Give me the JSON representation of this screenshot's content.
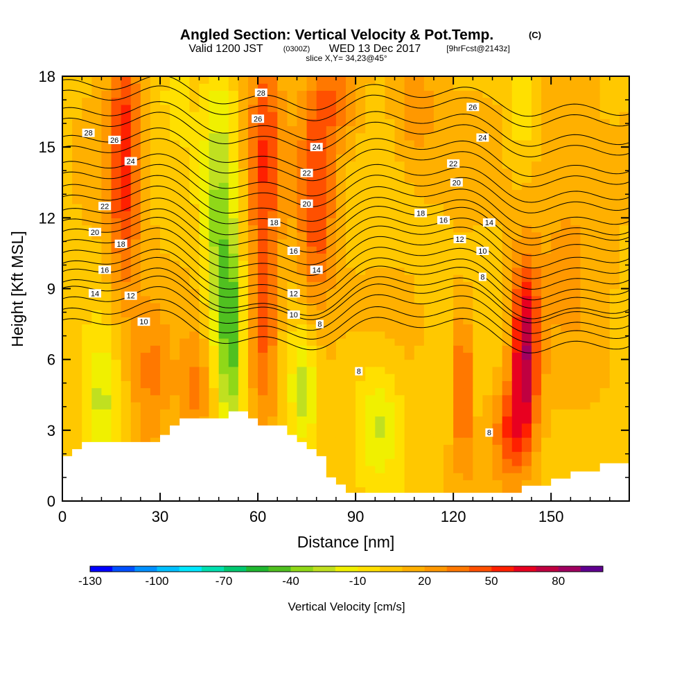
{
  "chart_data": {
    "type": "heatmap",
    "title": "Angled Section: Vertical Velocity & Pot.Temp.",
    "title_units": "(C)",
    "subtitle_line1_a": "Valid 1200 JST",
    "subtitle_line1_b": "(0300Z)",
    "subtitle_line1_c": "WED 13 Dec 2017",
    "subtitle_line1_d": "[9hrFcst@2143z]",
    "subtitle_line2": "slice X,Y= 34,23@45°",
    "xlabel": "Distance [nm]",
    "ylabel": "Height [Kft MSL]",
    "xlim": [
      0,
      174
    ],
    "ylim": [
      0,
      18
    ],
    "x_ticks": [
      "0",
      "30",
      "60",
      "90",
      "120",
      "150"
    ],
    "x_tick_values": [
      0,
      30,
      60,
      90,
      120,
      150
    ],
    "y_ticks": [
      "0",
      "3",
      "6",
      "9",
      "12",
      "15",
      "18"
    ],
    "y_tick_values": [
      0,
      3,
      6,
      9,
      12,
      15,
      18
    ],
    "colorbar": {
      "label": "Vertical Velocity [cm/s]",
      "min": -130,
      "max": 100,
      "step": 10,
      "tick_labels": [
        "-130",
        "-100",
        "-70",
        "-40",
        "-10",
        "20",
        "50",
        "80"
      ],
      "tick_values": [
        -130,
        -100,
        -70,
        -40,
        -10,
        20,
        50,
        80
      ],
      "colors": [
        "#0000ff",
        "#0050ff",
        "#0090ff",
        "#00c0ff",
        "#00e8ff",
        "#00e0b0",
        "#00c870",
        "#20b830",
        "#50c020",
        "#90d818",
        "#c0e020",
        "#f0f000",
        "#ffe000",
        "#ffc800",
        "#ffb000",
        "#ff9800",
        "#ff7800",
        "#ff5000",
        "#ff2000",
        "#e80020",
        "#c00040",
        "#a00060",
        "#600090"
      ]
    },
    "terrain_profile": {
      "x": [
        0,
        3,
        3,
        6,
        6,
        9,
        9,
        12,
        12,
        15,
        15,
        18,
        18,
        21,
        21,
        24,
        24,
        27,
        27,
        30,
        30,
        33,
        33,
        36,
        36,
        39,
        39,
        42,
        42,
        45,
        45,
        48,
        48,
        51,
        51,
        54,
        54,
        57,
        57,
        60,
        60,
        63,
        63,
        66,
        66,
        69,
        69,
        72,
        72,
        75,
        75,
        78,
        78,
        81,
        81,
        84,
        84,
        87,
        87,
        90,
        90,
        93,
        93,
        96,
        96,
        99,
        99,
        102,
        102,
        105,
        105,
        108,
        108,
        111,
        111,
        114,
        114,
        117,
        117,
        120,
        120,
        123,
        123,
        126,
        126,
        129,
        129,
        132,
        132,
        135,
        135,
        138,
        138,
        141,
        141,
        144,
        144,
        147,
        147,
        150,
        150,
        153,
        153,
        156,
        156,
        159,
        159,
        162,
        162,
        165,
        165,
        168,
        168,
        171,
        171,
        174
      ],
      "y": [
        1.9,
        1.9,
        2.2,
        2.2,
        2.5,
        2.5,
        2.5,
        2.5,
        2.5,
        2.5,
        2.5,
        2.5,
        2.5,
        2.5,
        2.5,
        2.5,
        2.5,
        2.5,
        2.5,
        2.5,
        2.8,
        2.8,
        3.2,
        3.2,
        3.5,
        3.5,
        3.5,
        3.5,
        3.5,
        3.5,
        3.5,
        3.5,
        3.5,
        3.5,
        3.8,
        3.8,
        3.8,
        3.8,
        3.5,
        3.5,
        3.2,
        3.2,
        3.2,
        3.2,
        3.2,
        3.2,
        2.8,
        2.8,
        2.5,
        2.5,
        2.2,
        2.2,
        1.9,
        1.9,
        1.0,
        1.0,
        0.7,
        0.7,
        0.35,
        0.35,
        0.35,
        0.35,
        0.35,
        0.35,
        0.35,
        0.35,
        0.35,
        0.35,
        0.35,
        0.35,
        0.35,
        0.35,
        0.35,
        0.35,
        0.35,
        0.35,
        0.35,
        0.35,
        0.35,
        0.35,
        0.35,
        0.35,
        0.35,
        0.35,
        0.35,
        0.35,
        0.35,
        0.35,
        0.35,
        0.35,
        0.35,
        0.35,
        0.35,
        0.35,
        0.65,
        0.65,
        0.65,
        0.65,
        0.65,
        0.65,
        0.95,
        0.95,
        0.95,
        0.95,
        1.25,
        1.25,
        1.25,
        1.25,
        1.25,
        1.25,
        1.6,
        1.6,
        1.6,
        1.6,
        1.6,
        1.6
      ]
    },
    "theta_contours": [
      {
        "label": "8",
        "base": 7.2,
        "amp": 0.6
      },
      {
        "label": "10",
        "base": 8.1,
        "amp": 0.7
      },
      {
        "label": "12",
        "base": 8.8,
        "amp": 0.8
      },
      {
        "label": "14",
        "base": 9.6,
        "amp": 0.8
      },
      {
        "label": "16",
        "base": 10.5,
        "amp": 0.8
      },
      {
        "label": "18",
        "base": 11.4,
        "amp": 0.7
      },
      {
        "label": "20",
        "base": 12.3,
        "amp": 0.7
      },
      {
        "label": "22",
        "base": 13.3,
        "amp": 0.6
      },
      {
        "label": "24",
        "base": 14.4,
        "amp": 0.6
      },
      {
        "label": "26",
        "base": 15.6,
        "amp": 0.5
      },
      {
        "label": "28",
        "base": 16.8,
        "amp": 0.4
      }
    ],
    "contour_label_marks": [
      {
        "label": "28",
        "x": 8,
        "y": 15.6
      },
      {
        "label": "26",
        "x": 16,
        "y": 15.3
      },
      {
        "label": "24",
        "x": 21,
        "y": 14.4
      },
      {
        "label": "22",
        "x": 13,
        "y": 12.5
      },
      {
        "label": "20",
        "x": 10,
        "y": 11.4
      },
      {
        "label": "18",
        "x": 18,
        "y": 10.9
      },
      {
        "label": "16",
        "x": 13,
        "y": 9.8
      },
      {
        "label": "14",
        "x": 10,
        "y": 8.8
      },
      {
        "label": "12",
        "x": 21,
        "y": 8.7
      },
      {
        "label": "10",
        "x": 25,
        "y": 7.6
      },
      {
        "label": "28",
        "x": 61,
        "y": 17.3
      },
      {
        "label": "26",
        "x": 60,
        "y": 16.2
      },
      {
        "label": "24",
        "x": 78,
        "y": 15.0
      },
      {
        "label": "22",
        "x": 75,
        "y": 13.9
      },
      {
        "label": "20",
        "x": 75,
        "y": 12.6
      },
      {
        "label": "18",
        "x": 65,
        "y": 11.8
      },
      {
        "label": "16",
        "x": 71,
        "y": 10.6
      },
      {
        "label": "14",
        "x": 78,
        "y": 9.8
      },
      {
        "label": "12",
        "x": 71,
        "y": 8.8
      },
      {
        "label": "10",
        "x": 71,
        "y": 7.9
      },
      {
        "label": "8",
        "x": 79,
        "y": 7.5
      },
      {
        "label": "8",
        "x": 91,
        "y": 5.5
      },
      {
        "label": "26",
        "x": 126,
        "y": 16.7
      },
      {
        "label": "24",
        "x": 129,
        "y": 15.4
      },
      {
        "label": "22",
        "x": 120,
        "y": 14.3
      },
      {
        "label": "20",
        "x": 121,
        "y": 13.5
      },
      {
        "label": "18",
        "x": 110,
        "y": 12.2
      },
      {
        "label": "16",
        "x": 117,
        "y": 11.9
      },
      {
        "label": "14",
        "x": 131,
        "y": 11.8
      },
      {
        "label": "12",
        "x": 122,
        "y": 11.1
      },
      {
        "label": "10",
        "x": 129,
        "y": 10.6
      },
      {
        "label": "8",
        "x": 129,
        "y": 9.5
      },
      {
        "label": "8",
        "x": 131,
        "y": 2.9
      }
    ],
    "w_features": [
      {
        "x": 19,
        "y": 14.5,
        "sx": 3.5,
        "sy": 4.5,
        "amp": 45
      },
      {
        "x": 27,
        "y": 5.5,
        "sx": 4,
        "sy": 2.5,
        "amp": 25
      },
      {
        "x": 12,
        "y": 4.0,
        "sx": 4,
        "sy": 2.0,
        "amp": -30
      },
      {
        "x": 48,
        "y": 11.0,
        "sx": 3.5,
        "sy": 5.0,
        "amp": -40
      },
      {
        "x": 52,
        "y": 7.0,
        "sx": 2.5,
        "sy": 3.0,
        "amp": -45
      },
      {
        "x": 41,
        "y": 4.5,
        "sx": 4,
        "sy": 1.8,
        "amp": 25
      },
      {
        "x": 62,
        "y": 14.5,
        "sx": 3.5,
        "sy": 5.0,
        "amp": 40
      },
      {
        "x": 62,
        "y": 6.5,
        "sx": 3,
        "sy": 2.5,
        "amp": 25
      },
      {
        "x": 74,
        "y": 4.5,
        "sx": 3,
        "sy": 1.8,
        "amp": -35
      },
      {
        "x": 78,
        "y": 12.5,
        "sx": 4,
        "sy": 3.5,
        "amp": 40
      },
      {
        "x": 84,
        "y": 17.0,
        "sx": 5,
        "sy": 1.5,
        "amp": 25
      },
      {
        "x": 97,
        "y": 3.5,
        "sx": 5,
        "sy": 1.8,
        "amp": -28
      },
      {
        "x": 108,
        "y": 16.5,
        "sx": 5,
        "sy": 2.0,
        "amp": 20
      },
      {
        "x": 123,
        "y": 5.0,
        "sx": 1.5,
        "sy": 2.3,
        "amp": 55
      },
      {
        "x": 142,
        "y": 6.5,
        "sx": 3.0,
        "sy": 2.5,
        "amp": 70
      },
      {
        "x": 138,
        "y": 3.0,
        "sx": 4,
        "sy": 1.5,
        "amp": 40
      },
      {
        "x": 155,
        "y": 12.5,
        "sx": 8,
        "sy": 4.0,
        "amp": 15
      },
      {
        "x": 141,
        "y": 17.0,
        "sx": 3,
        "sy": 2.0,
        "amp": -18
      },
      {
        "x": 35,
        "y": 17.5,
        "sx": 3,
        "sy": 1.5,
        "amp": -15
      }
    ]
  }
}
